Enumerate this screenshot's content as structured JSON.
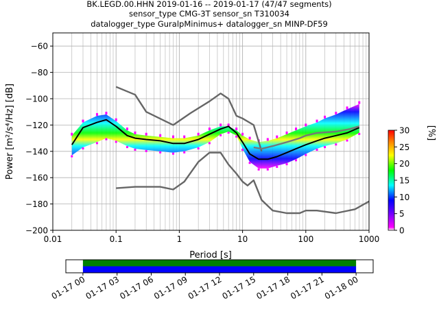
{
  "chart_data": {
    "type": "heatmap",
    "title_lines": [
      "BK.LEGD.00.HHN   2019-01-16 -- 2019-01-17  (47/47 segments)",
      "sensor_type CMG-3T sensor_sn T310034",
      "datalogger_type GuralpMinimus+ datalogger_sn MINP-DF59"
    ],
    "xlabel": "Period [s]",
    "ylabel": "Power [m²/s⁴/Hz] [dB]",
    "xscale": "log",
    "xlim": [
      0.01,
      1000
    ],
    "ylim": [
      -200,
      -50
    ],
    "x_ticks": [
      0.01,
      0.1,
      1,
      10,
      100,
      1000
    ],
    "x_tick_labels": [
      "0.01",
      "0.1",
      "1",
      "10",
      "100",
      "1000"
    ],
    "y_ticks": [
      -200,
      -180,
      -160,
      -140,
      -120,
      -100,
      -80,
      -60
    ],
    "y_tick_labels": [
      "−200",
      "−180",
      "−160",
      "−140",
      "−120",
      "−100",
      "−80",
      "−60"
    ],
    "grid": true,
    "colorbar": {
      "label": "[%]",
      "range": [
        0,
        30
      ],
      "ticks": [
        0,
        5,
        10,
        15,
        20,
        25,
        30
      ],
      "tick_labels": [
        "0",
        "5",
        "10",
        "15",
        "20",
        "25",
        "30"
      ]
    },
    "heatmap_band": {
      "period": [
        0.02,
        0.03,
        0.05,
        0.07,
        0.1,
        0.15,
        0.2,
        0.3,
        0.5,
        0.8,
        1.2,
        2,
        3,
        4.5,
        6,
        8,
        10,
        13,
        18,
        25,
        35,
        50,
        70,
        100,
        150,
        200,
        300,
        450,
        700
      ],
      "upper_db": [
        -128,
        -118,
        -113,
        -112,
        -117,
        -124,
        -127,
        -128,
        -129,
        -130,
        -130,
        -128,
        -124,
        -121,
        -121,
        -124,
        -128,
        -131,
        -133,
        -132,
        -130,
        -127,
        -124,
        -121,
        -118,
        -115,
        -112,
        -108,
        -104
      ],
      "lower_db": [
        -143,
        -137,
        -133,
        -130,
        -132,
        -136,
        -138,
        -139,
        -140,
        -141,
        -140,
        -137,
        -133,
        -127,
        -125,
        -128,
        -138,
        -148,
        -153,
        -153,
        -151,
        -149,
        -146,
        -142,
        -138,
        -136,
        -134,
        -131,
        -126
      ],
      "mode_db": [
        -135,
        -122,
        -118,
        -116,
        -121,
        -128,
        -130,
        -131,
        -132,
        -134,
        -134,
        -131,
        -127,
        -123,
        -121,
        -126,
        -133,
        -142,
        -146,
        -146,
        -144,
        -141,
        -138,
        -135,
        -132,
        -130,
        -128,
        -126,
        -122
      ]
    },
    "series": [
      {
        "color": "#000000",
        "x": [
          0.02,
          0.03,
          0.05,
          0.07,
          0.1,
          0.15,
          0.2,
          0.3,
          0.5,
          0.8,
          1.2,
          2,
          3,
          4.5,
          6,
          8,
          10,
          13,
          18,
          25,
          35,
          50,
          70,
          100,
          150,
          200,
          300,
          450,
          700
        ],
        "y": [
          -135,
          -122,
          -118,
          -116,
          -121,
          -128,
          -130,
          -131,
          -132,
          -134,
          -134,
          -131,
          -127,
          -123,
          -121,
          -126,
          -133,
          -142,
          -146,
          -146,
          -144,
          -141,
          -138,
          -135,
          -132,
          -130,
          -128,
          -126,
          -122
        ]
      },
      {
        "color": "#666666",
        "x": [
          0.1,
          0.2,
          0.3,
          0.8,
          1.5,
          3,
          4.5,
          6,
          8,
          10,
          15,
          20
        ],
        "y": [
          -91,
          -97,
          -110,
          -120,
          -111,
          -102,
          -96,
          -100,
          -113,
          -115,
          -120,
          -140
        ]
      },
      {
        "color": "#666666",
        "x": [
          0.1,
          0.2,
          0.5,
          0.8,
          1.2,
          2,
          3,
          4.5,
          6,
          8,
          10,
          12,
          15,
          20,
          30,
          50,
          80,
          100,
          150,
          300,
          600,
          1000
        ],
        "y": [
          -168,
          -167,
          -167,
          -169,
          -163,
          -148,
          -141,
          -141,
          -150,
          -157,
          -163,
          -166,
          -162,
          -177,
          -185,
          -187,
          -187,
          -185,
          -185,
          -187,
          -184,
          -178
        ]
      },
      {
        "color": "#777777",
        "x": [
          15,
          20,
          30,
          50,
          80,
          100,
          150,
          300,
          500,
          700
        ],
        "y": [
          -137,
          -138,
          -136,
          -133,
          -130,
          -128,
          -126,
          -125,
          -123,
          -121
        ]
      }
    ]
  },
  "timeline": {
    "tick_labels": [
      "01-17 00",
      "01-17 03",
      "01-17 06",
      "01-17 09",
      "01-17 12",
      "01-17 15",
      "01-17 18",
      "01-17 21",
      "01-18 00"
    ],
    "range_hours": [
      -1.5,
      25.5
    ],
    "data_start_hours": 0,
    "data_end_hours": 24,
    "bars": [
      {
        "color": "#008000",
        "from": 0,
        "to": 24
      },
      {
        "color": "#0000ff",
        "from": 0,
        "to": 24
      }
    ]
  }
}
